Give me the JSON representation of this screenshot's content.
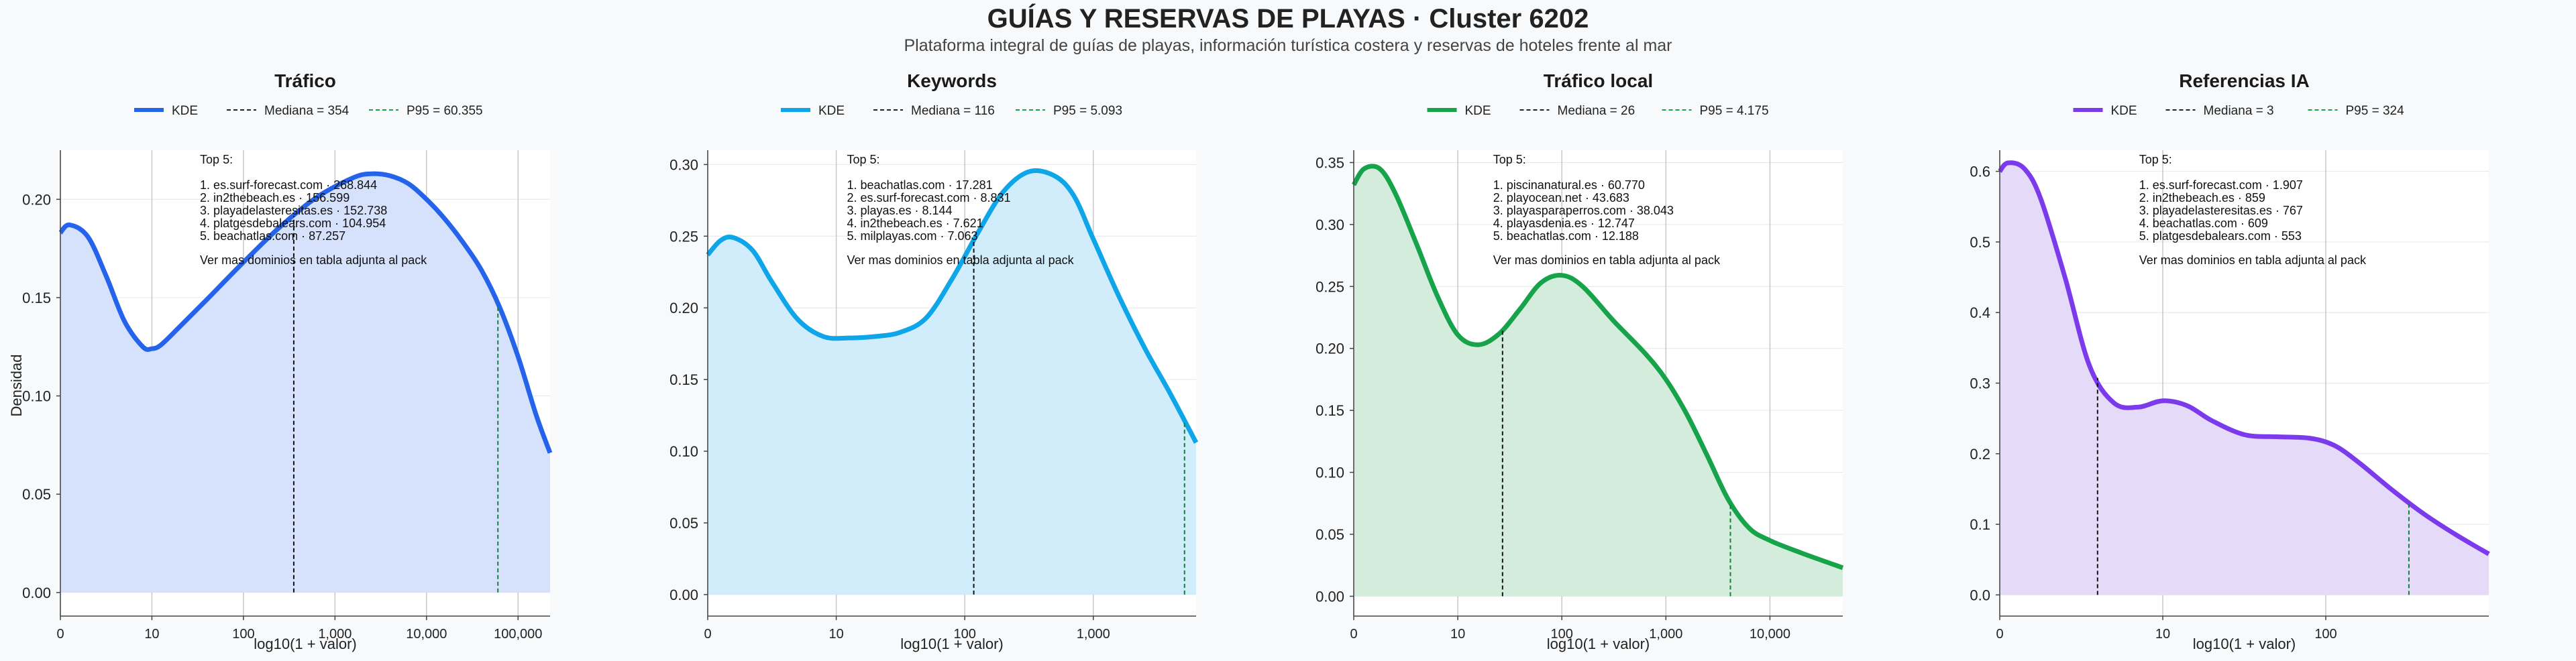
{
  "page": {
    "title": "GUÍAS Y RESERVAS DE PLAYAS · Cluster 6202",
    "subtitle": "Plataforma integral de guías de playas, información turística costera y reservas de hoteles frente al mar"
  },
  "shared": {
    "ylabel": "Densidad",
    "xlabel": "log10(1 + valor)",
    "top_heading": "Top 5:",
    "more_note": "Ver mas dominios en tabla adjunta al pack",
    "legend_kde": "KDE"
  },
  "chart_data": [
    {
      "type": "area",
      "title": "Tráfico",
      "color": "#2563eb",
      "fill": "#d6e1fb",
      "xlabel": "log10(1 + valor)",
      "ylabel": "Densidad",
      "xlim": [
        0,
        5.35
      ],
      "ylim": [
        -0.012,
        0.225
      ],
      "xticks": [
        0,
        1,
        2,
        3,
        4,
        5
      ],
      "xtick_labels": [
        "0",
        "10",
        "100",
        "1,000",
        "10,000",
        "100,000"
      ],
      "yticks": [
        0,
        0.05,
        0.1,
        0.15,
        0.2
      ],
      "ytick_labels": [
        "0.00",
        "0.05",
        "0.10",
        "0.15",
        "0.20"
      ],
      "x": [
        0,
        0.1,
        0.3,
        0.5,
        0.7,
        0.9,
        1.0,
        1.1,
        1.3,
        1.6,
        2.0,
        2.4,
        2.8,
        3.2,
        3.4,
        3.6,
        3.8,
        4.0,
        4.2,
        4.4,
        4.6,
        4.8,
        5.0,
        5.2,
        5.35
      ],
      "y": [
        0.183,
        0.187,
        0.181,
        0.161,
        0.138,
        0.125,
        0.124,
        0.126,
        0.135,
        0.149,
        0.168,
        0.186,
        0.201,
        0.211,
        0.213,
        0.212,
        0.208,
        0.2,
        0.19,
        0.178,
        0.164,
        0.145,
        0.12,
        0.09,
        0.071
      ],
      "median": {
        "label": "Mediana = 354",
        "x": 2.55
      },
      "p95": {
        "label": "P95 = 60.355",
        "x": 4.78
      },
      "top5": [
        "1. es.surf-forecast.com · 268.844",
        "2. in2thebeach.es · 156.599",
        "3. playadelasteresitas.es · 152.738",
        "4. platgesdebalears.com · 104.954",
        "5. beachatlas.com · 87.257"
      ]
    },
    {
      "type": "area",
      "title": "Keywords",
      "color": "#0ea5e9",
      "fill": "#d1edfb",
      "xlabel": "log10(1 + valor)",
      "ylabel": "Densidad",
      "xlim": [
        0,
        3.8
      ],
      "ylim": [
        -0.015,
        0.31
      ],
      "xticks": [
        0,
        1,
        2,
        3
      ],
      "xtick_labels": [
        "0",
        "10",
        "100",
        "1,000"
      ],
      "yticks": [
        0,
        0.05,
        0.1,
        0.15,
        0.2,
        0.25,
        0.3
      ],
      "ytick_labels": [
        "0.00",
        "0.05",
        "0.10",
        "0.15",
        "0.20",
        "0.25",
        "0.30"
      ],
      "x": [
        0,
        0.1,
        0.2,
        0.35,
        0.5,
        0.7,
        0.9,
        1.1,
        1.3,
        1.5,
        1.7,
        1.9,
        2.1,
        2.3,
        2.5,
        2.7,
        2.85,
        3.0,
        3.2,
        3.4,
        3.6,
        3.8
      ],
      "y": [
        0.237,
        0.247,
        0.249,
        0.24,
        0.218,
        0.192,
        0.18,
        0.179,
        0.18,
        0.183,
        0.193,
        0.22,
        0.252,
        0.281,
        0.295,
        0.292,
        0.278,
        0.248,
        0.208,
        0.172,
        0.14,
        0.106
      ],
      "median": {
        "label": "Mediana = 116",
        "x": 2.07
      },
      "p95": {
        "label": "P95 = 5.093",
        "x": 3.71
      },
      "top5": [
        "1. beachatlas.com · 17.281",
        "2. es.surf-forecast.com · 8.831",
        "3. playas.es · 8.144",
        "4. in2thebeach.es · 7.621",
        "5. milplayas.com · 7.063"
      ]
    },
    {
      "type": "area",
      "title": "Tráfico local",
      "color": "#16a34a",
      "fill": "#d3ecdc",
      "xlabel": "log10(1 + valor)",
      "ylabel": "Densidad",
      "xlim": [
        0,
        4.7
      ],
      "ylim": [
        -0.016,
        0.36
      ],
      "xticks": [
        0,
        1,
        2,
        3,
        4
      ],
      "xtick_labels": [
        "0",
        "10",
        "100",
        "1,000",
        "10,000"
      ],
      "yticks": [
        0,
        0.05,
        0.1,
        0.15,
        0.2,
        0.25,
        0.3,
        0.35
      ],
      "ytick_labels": [
        "0.00",
        "0.05",
        "0.10",
        "0.15",
        "0.20",
        "0.25",
        "0.30",
        "0.35"
      ],
      "x": [
        0,
        0.1,
        0.25,
        0.4,
        0.6,
        0.8,
        1.0,
        1.2,
        1.4,
        1.6,
        1.8,
        2.0,
        2.2,
        2.5,
        2.8,
        3.0,
        3.2,
        3.4,
        3.6,
        3.8,
        4.0,
        4.3,
        4.7
      ],
      "y": [
        0.332,
        0.345,
        0.345,
        0.325,
        0.285,
        0.243,
        0.211,
        0.203,
        0.212,
        0.232,
        0.253,
        0.259,
        0.25,
        0.222,
        0.196,
        0.175,
        0.147,
        0.113,
        0.078,
        0.055,
        0.045,
        0.035,
        0.023
      ],
      "median": {
        "label": "Mediana = 26",
        "x": 1.43
      },
      "p95": {
        "label": "P95 = 4.175",
        "x": 3.62
      },
      "top5": [
        "1. piscinanatural.es · 60.770",
        "2. playocean.net · 43.683",
        "3. playasparaperros.com · 38.043",
        "4. playasdenia.es · 12.747",
        "5. beachatlas.com · 12.188"
      ]
    },
    {
      "type": "area",
      "title": "Referencias IA",
      "color": "#7c3aed",
      "fill": "#e5dbf9",
      "xlabel": "log10(1 + valor)",
      "ylabel": "Densidad",
      "xlim": [
        0,
        3.0
      ],
      "ylim": [
        -0.03,
        0.63
      ],
      "xticks": [
        0,
        1,
        2
      ],
      "xtick_labels": [
        "0",
        "10",
        "100"
      ],
      "yticks": [
        0,
        0.1,
        0.2,
        0.3,
        0.4,
        0.5,
        0.6
      ],
      "ytick_labels": [
        "0.0",
        "0.1",
        "0.2",
        "0.3",
        "0.4",
        "0.5",
        "0.6"
      ],
      "x": [
        0,
        0.05,
        0.15,
        0.25,
        0.4,
        0.55,
        0.7,
        0.85,
        1.0,
        1.15,
        1.3,
        1.5,
        1.7,
        1.9,
        2.05,
        2.2,
        2.4,
        2.6,
        2.8,
        3.0
      ],
      "y": [
        0.6,
        0.612,
        0.604,
        0.562,
        0.45,
        0.325,
        0.272,
        0.266,
        0.275,
        0.268,
        0.247,
        0.227,
        0.224,
        0.222,
        0.212,
        0.188,
        0.15,
        0.115,
        0.085,
        0.058
      ],
      "median": {
        "label": "Mediana = 3",
        "x": 0.6
      },
      "p95": {
        "label": "P95 = 324",
        "x": 2.51
      },
      "top5": [
        "1. es.surf-forecast.com · 1.907",
        "2. in2thebeach.es · 859",
        "3. playadelasteresitas.es · 767",
        "4. beachatlas.com · 609",
        "5. platgesdebalears.com · 553"
      ]
    }
  ]
}
